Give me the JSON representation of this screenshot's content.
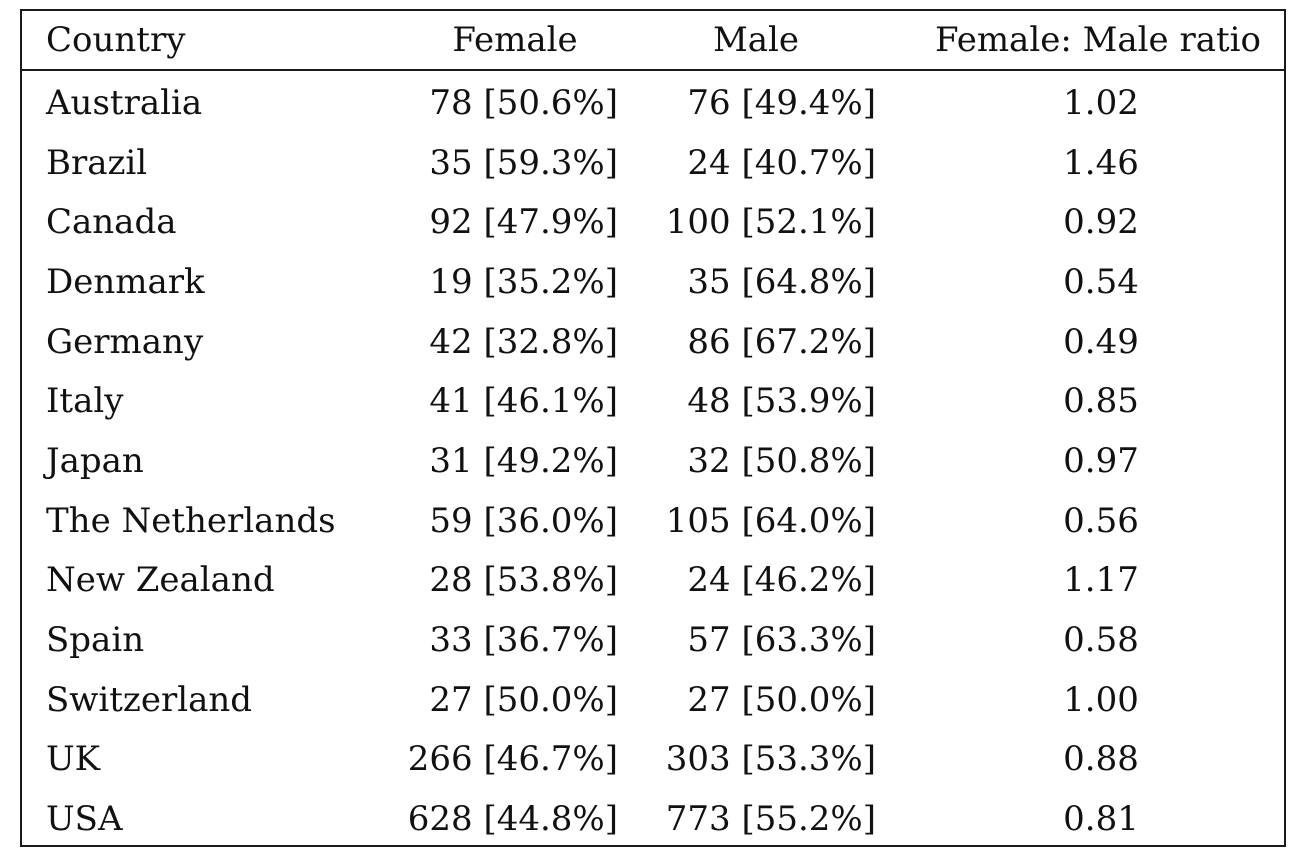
{
  "table": {
    "headers": {
      "country": "Country",
      "female": "Female",
      "male": "Male",
      "ratio": "Female: Male ratio"
    },
    "rows": [
      {
        "country": "Australia",
        "female": "78 [50.6%]",
        "male": "76 [49.4%]",
        "ratio": "1.02"
      },
      {
        "country": "Brazil",
        "female": "35 [59.3%]",
        "male": "24 [40.7%]",
        "ratio": "1.46"
      },
      {
        "country": "Canada",
        "female": "92 [47.9%]",
        "male": "100 [52.1%]",
        "ratio": "0.92"
      },
      {
        "country": "Denmark",
        "female": "19 [35.2%]",
        "male": "35 [64.8%]",
        "ratio": "0.54"
      },
      {
        "country": "Germany",
        "female": "42 [32.8%]",
        "male": "86 [67.2%]",
        "ratio": "0.49"
      },
      {
        "country": "Italy",
        "female": "41 [46.1%]",
        "male": "48 [53.9%]",
        "ratio": "0.85"
      },
      {
        "country": "Japan",
        "female": "31 [49.2%]",
        "male": "32 [50.8%]",
        "ratio": "0.97"
      },
      {
        "country": "The Netherlands",
        "female": "59 [36.0%]",
        "male": "105 [64.0%]",
        "ratio": "0.56"
      },
      {
        "country": "New Zealand",
        "female": "28 [53.8%]",
        "male": "24 [46.2%]",
        "ratio": "1.17"
      },
      {
        "country": "Spain",
        "female": "33 [36.7%]",
        "male": "57 [63.3%]",
        "ratio": "0.58"
      },
      {
        "country": "Switzerland",
        "female": "27 [50.0%]",
        "male": "27 [50.0%]",
        "ratio": "1.00"
      },
      {
        "country": "UK",
        "female": "266 [46.7%]",
        "male": "303 [53.3%]",
        "ratio": "0.88"
      },
      {
        "country": "USA",
        "female": "628 [44.8%]",
        "male": "773 [55.2%]",
        "ratio": "0.81"
      }
    ]
  }
}
